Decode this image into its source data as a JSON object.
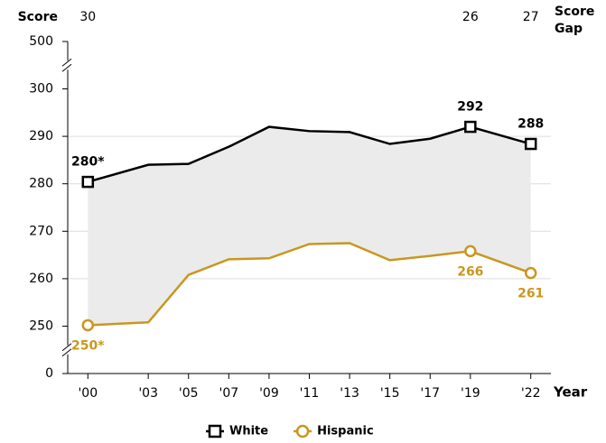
{
  "chart_data": {
    "type": "line",
    "y_label": "Score",
    "x_label": "Year",
    "x": [
      2000,
      2003,
      2005,
      2007,
      2009,
      2011,
      2013,
      2015,
      2017,
      2019,
      2022
    ],
    "xlim": [
      1999,
      2023
    ],
    "xticks": [
      {
        "value": 2000,
        "label": "'00"
      },
      {
        "value": 2003,
        "label": "'03"
      },
      {
        "value": 2005,
        "label": "'05"
      },
      {
        "value": 2007,
        "label": "'07"
      },
      {
        "value": 2009,
        "label": "'09"
      },
      {
        "value": 2011,
        "label": "'11"
      },
      {
        "value": 2013,
        "label": "'13"
      },
      {
        "value": 2015,
        "label": "'15"
      },
      {
        "value": 2017,
        "label": "'17"
      },
      {
        "value": 2019,
        "label": "'19"
      },
      {
        "value": 2022,
        "label": "'22"
      }
    ],
    "ylim": [
      0,
      500
    ],
    "y_breaks": [
      [
        0,
        250
      ],
      [
        300,
        500
      ]
    ],
    "yticks": [
      0,
      250,
      260,
      270,
      280,
      290,
      300,
      500
    ],
    "grid": true,
    "series": [
      {
        "name": "White",
        "color": "#000000",
        "marker": "square",
        "values": [
          280.4,
          284.0,
          284.2,
          287.8,
          292.0,
          291.1,
          290.9,
          288.4,
          289.5,
          292.0,
          288.4
        ],
        "value_labels": [
          "280*",
          null,
          null,
          null,
          null,
          null,
          null,
          null,
          null,
          "292",
          "288"
        ]
      },
      {
        "name": "Hispanic",
        "color": "#c9971f",
        "marker": "circle",
        "values": [
          250.2,
          250.8,
          260.8,
          264.1,
          264.3,
          267.3,
          267.5,
          263.9,
          264.8,
          265.8,
          261.2
        ],
        "value_labels": [
          "250*",
          null,
          null,
          null,
          null,
          null,
          null,
          null,
          null,
          "266",
          "261"
        ]
      }
    ],
    "gap_fill": "#ebebeb",
    "score_gap": {
      "label": "Score Gap",
      "x": [
        2000,
        2019,
        2022
      ],
      "values": [
        30,
        26,
        27
      ]
    },
    "legend": "bottom"
  }
}
